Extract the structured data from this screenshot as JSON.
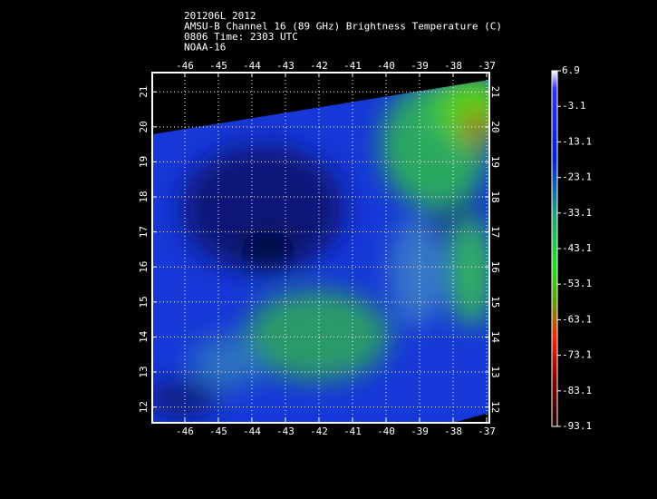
{
  "title_lines": [
    "201206L 2012",
    "AMSU-B Channel 16 (89 GHz) Brightness Temperature (C)",
    "0806 Time: 2303 UTC",
    "NOAA-16"
  ],
  "map": {
    "xlim": [
      -46.97,
      -36.92
    ],
    "ylim": [
      11.55,
      21.55
    ],
    "lon_ticks": [
      -46,
      -45,
      -44,
      -43,
      -42,
      -41,
      -40,
      -39,
      -38,
      -37
    ],
    "lat_ticks": [
      12,
      13,
      14,
      15,
      16,
      17,
      18,
      19,
      20,
      21
    ]
  },
  "colorbar": {
    "range": [
      -93.1,
      6.9
    ],
    "ticks": [
      6.9,
      -3.1,
      -13.1,
      -23.1,
      -33.1,
      -43.1,
      -53.1,
      -63.1,
      -73.1,
      -83.1,
      -93.1
    ]
  }
}
